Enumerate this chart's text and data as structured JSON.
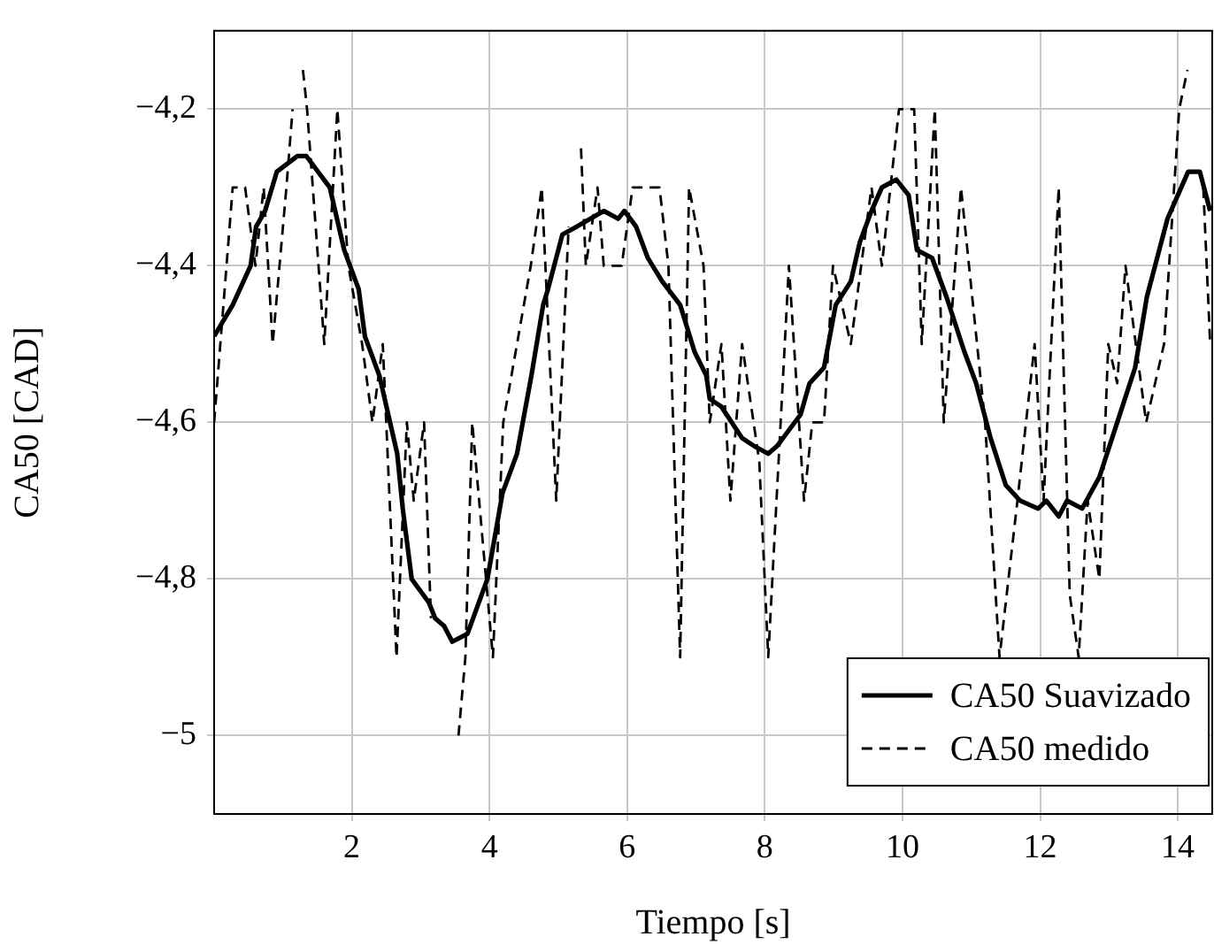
{
  "chart_data": {
    "type": "line",
    "xlabel": "Tiempo [s]",
    "ylabel": "CA50 [CAD]",
    "xlim": [
      0,
      14.5
    ],
    "xticks": [
      2,
      4,
      6,
      8,
      10,
      12,
      14
    ],
    "ylim": [
      -5.1,
      -4.1
    ],
    "yticks": [
      {
        "value": -5,
        "label": "−5"
      },
      {
        "value": -4.8,
        "label": "−4,8"
      },
      {
        "value": -4.6,
        "label": "−4,6"
      },
      {
        "value": -4.4,
        "label": "−4,4"
      },
      {
        "value": -4.2,
        "label": "−4,2"
      }
    ],
    "grid": true,
    "legend": "bottom right",
    "marker": "none",
    "series": [
      {
        "name": "CA50 Suavizado",
        "color": "#000000",
        "line_style": "solid",
        "x": [
          0,
          0.27,
          0.53,
          0.61,
          0.74,
          0.91,
          1.21,
          1.34,
          1.68,
          1.89,
          2.1,
          2.19,
          2.4,
          2.53,
          2.66,
          2.74,
          2.87,
          3.12,
          3.21,
          3.34,
          3.46,
          3.68,
          3.97,
          4.19,
          4.4,
          4.61,
          4.78,
          4.85,
          5.06,
          5.27,
          5.66,
          5.87,
          5.96,
          6.13,
          6.3,
          6.51,
          6.77,
          6.98,
          7.15,
          7.2,
          7.37,
          7.67,
          7.84,
          8.05,
          8.18,
          8.35,
          8.52,
          8.65,
          8.86,
          9.03,
          9.25,
          9.38,
          9.55,
          9.7,
          9.91,
          10.09,
          10.21,
          10.43,
          10.64,
          10.9,
          11.07,
          11.28,
          11.5,
          11.71,
          11.97,
          12.09,
          12.27,
          12.39,
          12.61,
          12.86,
          13.12,
          13.38,
          13.55,
          13.85,
          14.15,
          14.32,
          14.47
        ],
        "values": [
          -4.49,
          -4.45,
          -4.4,
          -4.35,
          -4.33,
          -4.28,
          -4.26,
          -4.26,
          -4.3,
          -4.38,
          -4.43,
          -4.49,
          -4.54,
          -4.59,
          -4.64,
          -4.71,
          -4.8,
          -4.83,
          -4.85,
          -4.86,
          -4.88,
          -4.87,
          -4.8,
          -4.69,
          -4.64,
          -4.54,
          -4.45,
          -4.43,
          -4.36,
          -4.35,
          -4.33,
          -4.34,
          -4.33,
          -4.35,
          -4.39,
          -4.42,
          -4.45,
          -4.51,
          -4.54,
          -4.57,
          -4.58,
          -4.62,
          -4.63,
          -4.64,
          -4.63,
          -4.61,
          -4.59,
          -4.55,
          -4.53,
          -4.45,
          -4.42,
          -4.37,
          -4.33,
          -4.3,
          -4.29,
          -4.31,
          -4.38,
          -4.39,
          -4.44,
          -4.51,
          -4.55,
          -4.62,
          -4.68,
          -4.7,
          -4.71,
          -4.7,
          -4.72,
          -4.7,
          -4.71,
          -4.67,
          -4.6,
          -4.53,
          -4.44,
          -4.34,
          -4.28,
          -4.28,
          -4.33
        ]
      },
      {
        "name": "CA50 medido",
        "color": "#000000",
        "line_style": "dashed",
        "x": [
          0,
          0.27,
          0.45,
          0.6,
          0.72,
          0.85,
          1.05,
          1.14,
          1.22,
          1.29,
          1.35,
          1.6,
          1.79,
          1.95,
          2.15,
          2.3,
          2.45,
          2.65,
          2.8,
          2.9,
          3.05,
          3.15,
          3.25,
          3.45,
          3.55,
          3.65,
          3.75,
          4.05,
          4.2,
          4.4,
          4.6,
          4.76,
          4.97,
          5.15,
          5.27,
          5.33,
          5.4,
          5.57,
          5.66,
          5.92,
          6.08,
          6.47,
          6.6,
          6.77,
          6.9,
          7.11,
          7.2,
          7.37,
          7.5,
          7.67,
          7.92,
          8.05,
          8.35,
          8.57,
          8.69,
          8.86,
          8.99,
          9.25,
          9.55,
          9.7,
          9.95,
          10.17,
          10.28,
          10.47,
          10.6,
          10.85,
          11.2,
          11.41,
          11.67,
          11.92,
          12.05,
          12.27,
          12.43,
          12.56,
          12.69,
          12.86,
          12.99,
          13.12,
          13.24,
          13.54,
          13.8,
          14.02,
          14.14,
          14.27,
          14.37,
          14.47
        ],
        "values": [
          -4.6,
          -4.3,
          -4.3,
          -4.4,
          -4.3,
          -4.5,
          -4.3,
          -4.2,
          null,
          -4.15,
          -4.2,
          -4.5,
          -4.2,
          -4.4,
          -4.5,
          -4.6,
          -4.5,
          -4.9,
          -4.6,
          -4.7,
          -4.6,
          -4.85,
          null,
          null,
          -5,
          -4.9,
          -4.6,
          -4.9,
          -4.6,
          -4.5,
          -4.4,
          -4.3,
          -4.7,
          -4.35,
          null,
          -4.25,
          -4.4,
          -4.3,
          -4.4,
          -4.4,
          -4.3,
          -4.3,
          -4.4,
          -4.9,
          -4.3,
          -4.4,
          -4.6,
          -4.5,
          -4.7,
          -4.5,
          -4.65,
          -4.9,
          -4.4,
          -4.7,
          -4.6,
          -4.6,
          -4.4,
          -4.5,
          -4.3,
          -4.4,
          -4.2,
          -4.2,
          -4.5,
          -4.2,
          -4.6,
          -4.3,
          -4.6,
          -4.9,
          -4.7,
          -4.5,
          -4.7,
          -4.3,
          -4.82,
          -4.9,
          -4.7,
          -4.8,
          -4.5,
          -4.55,
          -4.4,
          -4.6,
          -4.5,
          -4.2,
          -4.15,
          null,
          -4.3,
          -4.5
        ]
      }
    ]
  }
}
